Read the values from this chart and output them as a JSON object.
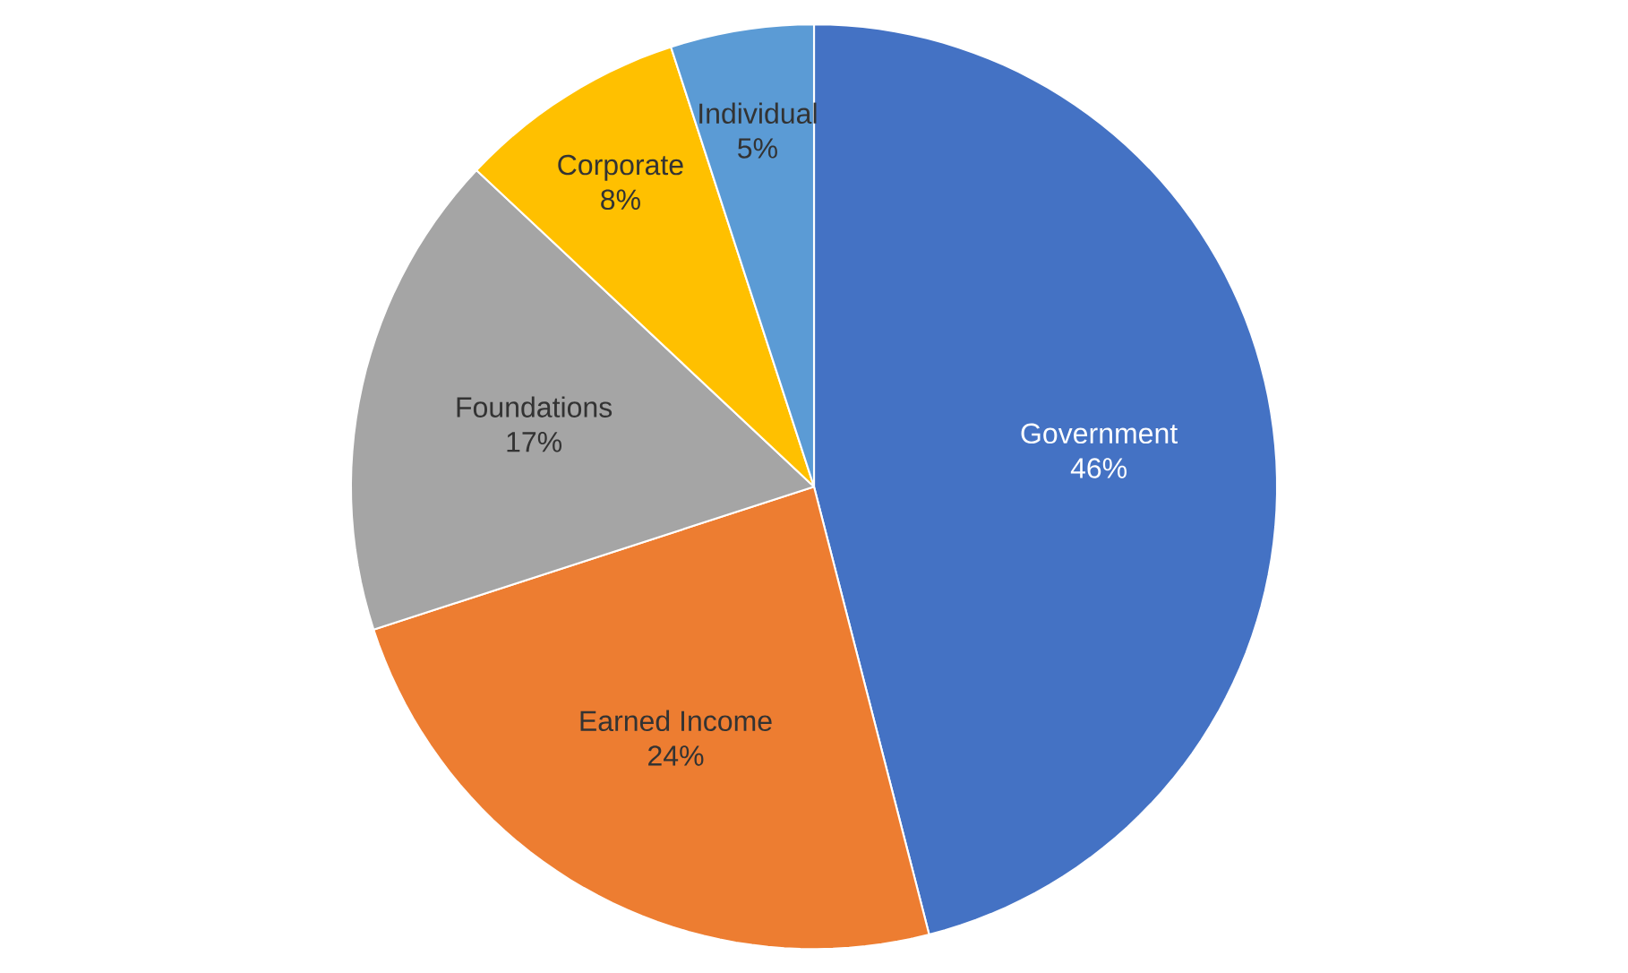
{
  "chart_data": {
    "type": "pie",
    "categories": [
      "Government",
      "Earned Income",
      "Foundations",
      "Corporate",
      "Individual"
    ],
    "values": [
      46,
      24,
      17,
      8,
      5
    ],
    "value_labels": [
      "46%",
      "24%",
      "17%",
      "8%",
      "5%"
    ],
    "colors": [
      "#4472c4",
      "#ed7d31",
      "#a5a5a5",
      "#ffc000",
      "#5b9bd5"
    ]
  }
}
